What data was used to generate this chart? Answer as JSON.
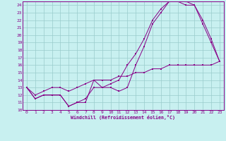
{
  "xlabel": "Windchill (Refroidissement éolien,°C)",
  "ylabel": "",
  "bg_color": "#c8f0f0",
  "line_color": "#880088",
  "grid_color": "#99cccc",
  "xlim": [
    -0.5,
    23.5
  ],
  "ylim": [
    10,
    24.5
  ],
  "xticks": [
    0,
    1,
    2,
    3,
    4,
    5,
    6,
    7,
    8,
    9,
    10,
    11,
    12,
    13,
    14,
    15,
    16,
    17,
    18,
    19,
    20,
    21,
    22,
    23
  ],
  "yticks": [
    10,
    11,
    12,
    13,
    14,
    15,
    16,
    17,
    18,
    19,
    20,
    21,
    22,
    23,
    24
  ],
  "line1_x": [
    0,
    1,
    2,
    3,
    4,
    5,
    6,
    7,
    8,
    9,
    10,
    11,
    12,
    13,
    14,
    15,
    16,
    17,
    18,
    19,
    20,
    21,
    22,
    23
  ],
  "line1_y": [
    13,
    11.5,
    12,
    12,
    12,
    10.5,
    11,
    11,
    14,
    13,
    13,
    12.5,
    13,
    16,
    18.5,
    21.5,
    23,
    24.5,
    24.5,
    24.5,
    24,
    21.5,
    19,
    16.5
  ],
  "line2_x": [
    0,
    1,
    2,
    3,
    4,
    5,
    6,
    7,
    8,
    9,
    10,
    11,
    12,
    13,
    14,
    15,
    16,
    17,
    18,
    19,
    20,
    21,
    22,
    23
  ],
  "line2_y": [
    13,
    11.5,
    12,
    12,
    12,
    10.5,
    11,
    11.5,
    13,
    13,
    13.5,
    14,
    16,
    17.5,
    19.5,
    22,
    23.5,
    24.5,
    24.5,
    24,
    24,
    22,
    19.5,
    16.5
  ],
  "line3_x": [
    0,
    1,
    2,
    3,
    4,
    5,
    6,
    7,
    8,
    9,
    10,
    11,
    12,
    13,
    14,
    15,
    16,
    17,
    18,
    19,
    20,
    21,
    22,
    23
  ],
  "line3_y": [
    13,
    12,
    12.5,
    13,
    13,
    12.5,
    13,
    13.5,
    14,
    14,
    14,
    14.5,
    14.5,
    15,
    15,
    15.5,
    15.5,
    16,
    16,
    16,
    16,
    16,
    16,
    16.5
  ]
}
